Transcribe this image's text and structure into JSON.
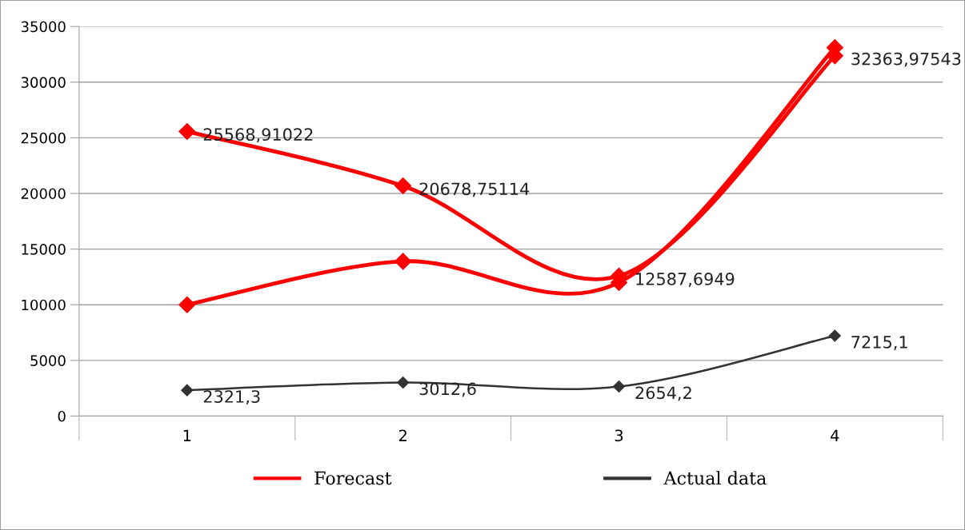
{
  "chart_data": {
    "type": "line",
    "categories": [
      "1",
      "2",
      "3",
      "4"
    ],
    "series": [
      {
        "name": "Forecast",
        "color": "#ff0000",
        "values": [
          25568.91022,
          20678.75114,
          12587.6949,
          32363.97543
        ],
        "value_labels": [
          "25568,91022",
          "20678,75114",
          "12587,6949",
          "32363,97543"
        ]
      },
      {
        "color": "#ff0000",
        "values": [
          10000,
          13900,
          12000,
          33100
        ]
      },
      {
        "name": "Actual data",
        "color": "#333333",
        "values": [
          2321.3,
          3012.6,
          2654.2,
          7215.1
        ],
        "value_labels": [
          "2321,3",
          "3012,6",
          "2654,2",
          "7215,1"
        ]
      }
    ],
    "ylim": [
      0,
      35000
    ],
    "yticks": [
      0,
      5000,
      10000,
      15000,
      20000,
      25000,
      30000,
      35000
    ],
    "grid": "y",
    "legend": "bottom",
    "marker": "diamond",
    "line_style": "solid"
  }
}
